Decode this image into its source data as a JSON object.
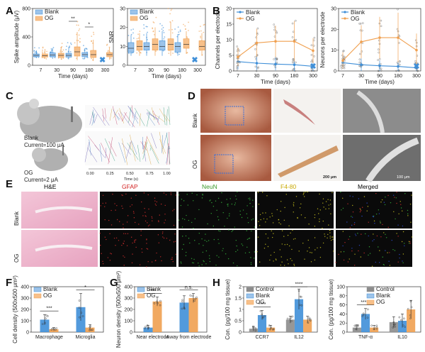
{
  "colors": {
    "blank": "#3f8fd8",
    "og": "#f0a050",
    "control": "#8c8c8c",
    "blank_fill": "#9cc3ea",
    "og_fill": "#f7c08a"
  },
  "panel_letters": [
    "A",
    "B",
    "C",
    "D",
    "E",
    "F",
    "G",
    "H"
  ],
  "chart_data": [
    {
      "id": "A1",
      "type": "box",
      "ylabel": "Spike amplitude (μV)",
      "xlabel": "Time (days)",
      "categories": [
        "7",
        "30",
        "90",
        "180",
        "300"
      ],
      "ylim": [
        0,
        800
      ],
      "yticks": [
        0,
        400,
        800
      ],
      "legend": [
        "Blank",
        "OG"
      ],
      "series": [
        {
          "name": "Blank",
          "boxes": [
            [
              100,
              120,
              140,
              160,
              210
            ],
            [
              90,
              120,
              145,
              175,
              240
            ],
            [
              85,
              115,
              140,
              170,
              260
            ],
            [
              90,
              120,
              150,
              180,
              240
            ],
            [
              null,
              null,
              null,
              null,
              null
            ]
          ]
        },
        {
          "name": "OG",
          "boxes": [
            [
              90,
              115,
              135,
              160,
              230
            ],
            [
              80,
              110,
              140,
              170,
              260
            ],
            [
              70,
              130,
              190,
              260,
              470
            ],
            [
              60,
              110,
              150,
              210,
              360
            ],
            [
              80,
              120,
              150,
              180,
              250
            ]
          ]
        }
      ],
      "annotations": [
        {
          "text": "**",
          "between": "90"
        },
        {
          "text": "*",
          "between": "180"
        }
      ],
      "missing_marker": "300 Blank"
    },
    {
      "id": "A2",
      "type": "box",
      "ylabel": "SNR",
      "xlabel": "Time (days)",
      "categories": [
        "7",
        "30",
        "90",
        "180",
        "300"
      ],
      "ylim": [
        0,
        30
      ],
      "yticks": [
        0,
        10,
        20,
        30
      ],
      "legend": [
        "Blank",
        "OG"
      ],
      "series": [
        {
          "name": "Blank",
          "boxes": [
            [
              5,
              7,
              9,
              12,
              16
            ],
            [
              5,
              8,
              10,
              12,
              17
            ],
            [
              5,
              8,
              10,
              13,
              18
            ],
            [
              5,
              7,
              10,
              12,
              16
            ],
            [
              null,
              null,
              null,
              null,
              null
            ]
          ]
        },
        {
          "name": "OG",
          "boxes": [
            [
              5,
              8,
              10,
              13,
              17
            ],
            [
              5,
              8,
              11,
              14,
              20
            ],
            [
              5,
              8,
              11,
              14,
              23
            ],
            [
              6,
              9,
              11,
              14,
              18
            ],
            [
              5,
              8,
              10,
              13,
              17
            ]
          ]
        }
      ],
      "missing_marker": "300 Blank"
    },
    {
      "id": "B1",
      "type": "line",
      "ylabel": "Channels per electrode",
      "xlabel": "Time (days)",
      "x": [
        7,
        30,
        90,
        180,
        300
      ],
      "xticks": [
        "7",
        "30",
        "90",
        "180",
        "300"
      ],
      "ylim": [
        0,
        20
      ],
      "yticks": [
        0,
        5,
        10,
        15,
        20
      ],
      "legend": [
        "Blank",
        "OG"
      ],
      "series": [
        {
          "name": "Blank",
          "values": [
            3,
            2.5,
            2.2,
            2.0,
            1.5
          ],
          "err": [
            2.5,
            2.2,
            2.0,
            2.0,
            1.5
          ]
        },
        {
          "name": "OG",
          "values": [
            4.5,
            9,
            9.5,
            9.5,
            6.5
          ],
          "err": [
            3.0,
            4.5,
            5.0,
            6.5,
            4.0
          ]
        }
      ]
    },
    {
      "id": "B2",
      "type": "line",
      "ylabel": "Neurons per electrode",
      "xlabel": "Time (days)",
      "x": [
        7,
        30,
        90,
        180,
        300
      ],
      "xticks": [
        "7",
        "30",
        "90",
        "180",
        "300"
      ],
      "ylim": [
        0,
        30
      ],
      "yticks": [
        0,
        10,
        20,
        30
      ],
      "legend": [
        "Blank",
        "OG"
      ],
      "series": [
        {
          "name": "Blank",
          "values": [
            4,
            3,
            2.5,
            2.2,
            1.5
          ],
          "err": [
            3,
            3,
            2.5,
            2.5,
            2
          ]
        },
        {
          "name": "OG",
          "values": [
            5,
            14,
            16,
            16,
            10
          ],
          "err": [
            4,
            8,
            10,
            12,
            8
          ]
        }
      ]
    },
    {
      "id": "F",
      "type": "bar",
      "ylabel": "Cell density (500x500 μm²)",
      "categories": [
        "Macrophage",
        "Microglia"
      ],
      "ylim": [
        0,
        400
      ],
      "yticks": [
        0,
        100,
        200,
        300,
        400
      ],
      "legend": [
        "Blank",
        "OG"
      ],
      "series": [
        {
          "name": "Blank",
          "values": [
            110,
            220
          ],
          "err": [
            45,
            120
          ]
        },
        {
          "name": "OG",
          "values": [
            25,
            40
          ],
          "err": [
            15,
            25
          ]
        }
      ],
      "annotations": [
        {
          "text": "***",
          "category": "Macrophage"
        },
        {
          "text": "*",
          "category": "Microglia"
        }
      ]
    },
    {
      "id": "G",
      "type": "bar",
      "ylabel": "Neuron density (500x500 μm²)",
      "categories": [
        "Near electrode",
        "Away from electrode"
      ],
      "ylim": [
        0,
        400
      ],
      "yticks": [
        0,
        100,
        200,
        300,
        400
      ],
      "legend": [
        "Blank",
        "OG"
      ],
      "series": [
        {
          "name": "Blank",
          "values": [
            40,
            260
          ],
          "err": [
            20,
            60
          ]
        },
        {
          "name": "OG",
          "values": [
            270,
            300
          ],
          "err": [
            40,
            40
          ]
        }
      ],
      "annotations": [
        {
          "text": "****",
          "category": "Near electrode"
        },
        {
          "text": "n.s.",
          "category": "Away from electrode"
        }
      ]
    },
    {
      "id": "H1",
      "type": "bar",
      "ylabel": "Con. (pg/100 mg tissue)",
      "categories": [
        "CCR7",
        "IL12"
      ],
      "ylim": [
        0,
        2.0
      ],
      "yticks": [
        0.0,
        0.5,
        1.0,
        1.5,
        2.0
      ],
      "legend": [
        "Control",
        "Blank",
        "OG"
      ],
      "series": [
        {
          "name": "Control",
          "values": [
            0.15,
            0.55
          ],
          "err": [
            0.1,
            0.15
          ]
        },
        {
          "name": "Blank",
          "values": [
            0.75,
            1.45
          ],
          "err": [
            0.2,
            0.45
          ]
        },
        {
          "name": "OG",
          "values": [
            0.2,
            0.55
          ],
          "err": [
            0.1,
            0.15
          ]
        }
      ],
      "annotations": [
        {
          "text": "****",
          "category": "CCR7"
        },
        {
          "text": "****",
          "category": "IL12"
        }
      ]
    },
    {
      "id": "H2",
      "type": "bar",
      "ylabel": "Con. (pg/100 mg tissue)",
      "categories": [
        "TNF-α",
        "IL10"
      ],
      "ylim": [
        0,
        100
      ],
      "yticks": [
        0,
        20,
        40,
        60,
        80,
        100
      ],
      "legend": [
        "Control",
        "Blank",
        "OG"
      ],
      "series": [
        {
          "name": "Control",
          "values": [
            10,
            22
          ],
          "err": [
            6,
            12
          ]
        },
        {
          "name": "Blank",
          "values": [
            40,
            25
          ],
          "err": [
            12,
            15
          ]
        },
        {
          "name": "OG",
          "values": [
            10,
            50
          ],
          "err": [
            5,
            20
          ]
        }
      ],
      "annotations": [
        {
          "text": "*****",
          "category": "TNF-α"
        }
      ]
    }
  ],
  "panel_c": {
    "blank_label": "Blank",
    "blank_current": "Current=100 μA",
    "og_label": "OG",
    "og_current": "Current=2 μA",
    "time_label": "Time (s)",
    "time_ticks": [
      "0.00",
      "0.25",
      "0.50",
      "0.75",
      "1.00"
    ]
  },
  "panel_d": {
    "row_labels": [
      "Blank",
      "OG"
    ],
    "scale1": "200 μm",
    "scale2": "100 μm"
  },
  "panel_e": {
    "columns": [
      "H&E",
      "GFAP",
      "NeuN",
      "F4-80",
      "Merged"
    ],
    "column_colors": [
      "#333333",
      "#d22020",
      "#3a9a2a",
      "#d8c020",
      "#333333"
    ],
    "row_labels": [
      "Blank",
      "OG"
    ],
    "scale": "100 μm"
  }
}
